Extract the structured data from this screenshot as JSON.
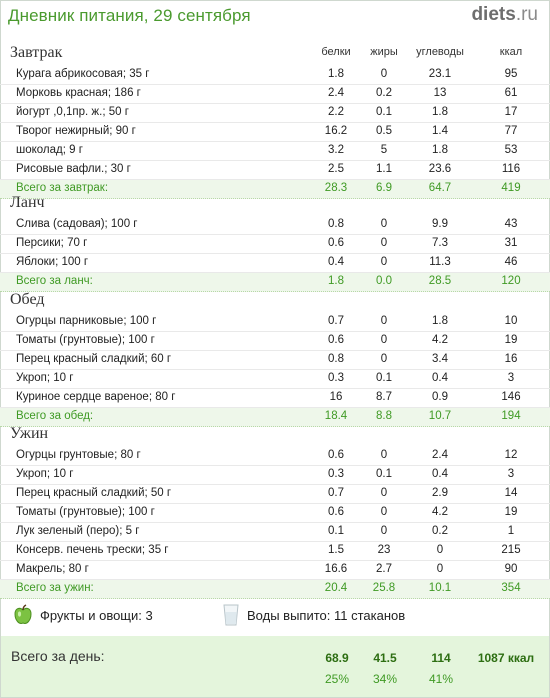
{
  "header": {
    "title": "Дневник питания, 29 сентября",
    "brand_main": "diets",
    "brand_tld": ".ru"
  },
  "columns": {
    "protein": "белки",
    "fat": "жиры",
    "carbs": "углеводы",
    "kcal": "ккал"
  },
  "meals": [
    {
      "title": "Завтрак",
      "items": [
        {
          "name": "Курага абрикосовая; 35 г",
          "protein": "1.8",
          "fat": "0",
          "carbs": "23.1",
          "kcal": "95"
        },
        {
          "name": "Морковь красная; 186 г",
          "protein": "2.4",
          "fat": "0.2",
          "carbs": "13",
          "kcal": "61"
        },
        {
          "name": "йогурт ,0,1пр. ж.; 50 г",
          "protein": "2.2",
          "fat": "0.1",
          "carbs": "1.8",
          "kcal": "17"
        },
        {
          "name": "Творог нежирный; 90 г",
          "protein": "16.2",
          "fat": "0.5",
          "carbs": "1.4",
          "kcal": "77"
        },
        {
          "name": "шоколад; 9 г",
          "protein": "3.2",
          "fat": "5",
          "carbs": "1.8",
          "kcal": "53"
        },
        {
          "name": "Рисовые вафли.; 30 г",
          "protein": "2.5",
          "fat": "1.1",
          "carbs": "23.6",
          "kcal": "116"
        }
      ],
      "total": {
        "name": "Всего за завтрак:",
        "protein": "28.3",
        "fat": "6.9",
        "carbs": "64.7",
        "kcal": "419"
      }
    },
    {
      "title": "Ланч",
      "items": [
        {
          "name": "Слива (садовая); 100 г",
          "protein": "0.8",
          "fat": "0",
          "carbs": "9.9",
          "kcal": "43"
        },
        {
          "name": "Персики; 70 г",
          "protein": "0.6",
          "fat": "0",
          "carbs": "7.3",
          "kcal": "31"
        },
        {
          "name": "Яблоки; 100 г",
          "protein": "0.4",
          "fat": "0",
          "carbs": "11.3",
          "kcal": "46"
        }
      ],
      "total": {
        "name": "Всего за ланч:",
        "protein": "1.8",
        "fat": "0.0",
        "carbs": "28.5",
        "kcal": "120"
      }
    },
    {
      "title": "Обед",
      "items": [
        {
          "name": "Огурцы парниковые; 100 г",
          "protein": "0.7",
          "fat": "0",
          "carbs": "1.8",
          "kcal": "10"
        },
        {
          "name": "Томаты (грунтовые); 100 г",
          "protein": "0.6",
          "fat": "0",
          "carbs": "4.2",
          "kcal": "19"
        },
        {
          "name": "Перец красный сладкий; 60 г",
          "protein": "0.8",
          "fat": "0",
          "carbs": "3.4",
          "kcal": "16"
        },
        {
          "name": "Укроп; 10 г",
          "protein": "0.3",
          "fat": "0.1",
          "carbs": "0.4",
          "kcal": "3"
        },
        {
          "name": "Куриное сердце вареное; 80 г",
          "protein": "16",
          "fat": "8.7",
          "carbs": "0.9",
          "kcal": "146"
        }
      ],
      "total": {
        "name": "Всего за обед:",
        "protein": "18.4",
        "fat": "8.8",
        "carbs": "10.7",
        "kcal": "194"
      }
    },
    {
      "title": "Ужин",
      "items": [
        {
          "name": "Огурцы грунтовые; 80 г",
          "protein": "0.6",
          "fat": "0",
          "carbs": "2.4",
          "kcal": "12"
        },
        {
          "name": "Укроп; 10 г",
          "protein": "0.3",
          "fat": "0.1",
          "carbs": "0.4",
          "kcal": "3"
        },
        {
          "name": "Перец красный сладкий; 50 г",
          "protein": "0.7",
          "fat": "0",
          "carbs": "2.9",
          "kcal": "14"
        },
        {
          "name": "Томаты (грунтовые); 100 г",
          "protein": "0.6",
          "fat": "0",
          "carbs": "4.2",
          "kcal": "19"
        },
        {
          "name": "Лук зеленый (перо); 5 г",
          "protein": "0.1",
          "fat": "0",
          "carbs": "0.2",
          "kcal": "1"
        },
        {
          "name": "Консерв. печень трески; 35 г",
          "protein": "1.5",
          "fat": "23",
          "carbs": "0",
          "kcal": "215"
        },
        {
          "name": "Макрель; 80 г",
          "protein": "16.6",
          "fat": "2.7",
          "carbs": "0",
          "kcal": "90"
        }
      ],
      "total": {
        "name": "Всего за ужин:",
        "protein": "20.4",
        "fat": "25.8",
        "carbs": "10.1",
        "kcal": "354"
      }
    }
  ],
  "misc": {
    "fruit_text": "Фрукты и овощи: 3",
    "water_text": "Воды выпито: 11 стаканов",
    "apple_icon": "apple-icon",
    "glass_icon": "water-glass-icon"
  },
  "day": {
    "label": "Всего за день:",
    "protein": "68.9",
    "fat": "41.5",
    "carbs": "114",
    "kcal": "1087 ккал",
    "protein_pct": "25%",
    "fat_pct": "34%",
    "carbs_pct": "41%"
  },
  "colors": {
    "accent_green": "#4a9a2e",
    "total_bg": "#eef7ea",
    "day_bg": "#e4f5dc"
  }
}
